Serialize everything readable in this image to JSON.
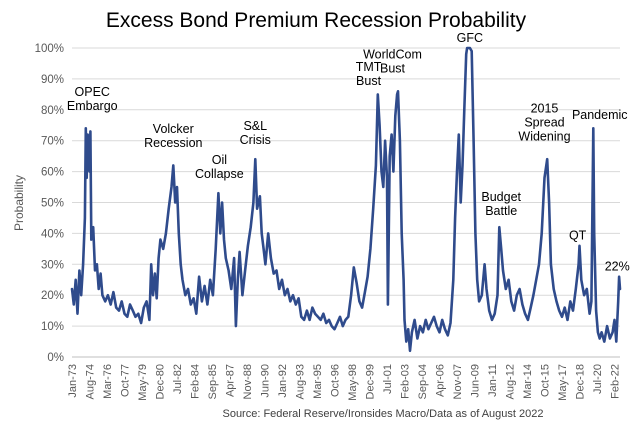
{
  "chart_data": {
    "type": "line",
    "title": "Excess Bond Premium Recession Probability",
    "xlabel": "",
    "ylabel": "Probability",
    "source": "Source: Federal Reserve/Ironsides Macro/Data as of August 2022",
    "ylim": [
      0,
      100
    ],
    "yticks": [
      "0%",
      "10%",
      "20%",
      "30%",
      "40%",
      "50%",
      "60%",
      "70%",
      "80%",
      "90%",
      "100%"
    ],
    "xlim": [
      "1973-01",
      "2022-08"
    ],
    "xticks": [
      {
        "label": "Jan-73",
        "date": "1973-01"
      },
      {
        "label": "Aug-74",
        "date": "1974-08"
      },
      {
        "label": "Mar-76",
        "date": "1976-03"
      },
      {
        "label": "Oct-77",
        "date": "1977-10"
      },
      {
        "label": "May-79",
        "date": "1979-05"
      },
      {
        "label": "Dec-80",
        "date": "1980-12"
      },
      {
        "label": "Jul-82",
        "date": "1982-07"
      },
      {
        "label": "Feb-84",
        "date": "1984-02"
      },
      {
        "label": "Sep-85",
        "date": "1985-09"
      },
      {
        "label": "Apr-87",
        "date": "1987-04"
      },
      {
        "label": "Nov-88",
        "date": "1988-11"
      },
      {
        "label": "Jun-90",
        "date": "1990-06"
      },
      {
        "label": "Jan-92",
        "date": "1992-01"
      },
      {
        "label": "Aug-93",
        "date": "1993-08"
      },
      {
        "label": "Mar-95",
        "date": "1995-03"
      },
      {
        "label": "Oct-96",
        "date": "1996-10"
      },
      {
        "label": "May-98",
        "date": "1998-05"
      },
      {
        "label": "Dec-99",
        "date": "1999-12"
      },
      {
        "label": "Jul-01",
        "date": "2001-07"
      },
      {
        "label": "Feb-03",
        "date": "2003-02"
      },
      {
        "label": "Sep-04",
        "date": "2004-09"
      },
      {
        "label": "Apr-06",
        "date": "2006-04"
      },
      {
        "label": "Nov-07",
        "date": "2007-11"
      },
      {
        "label": "Jun-09",
        "date": "2009-06"
      },
      {
        "label": "Jan-11",
        "date": "2011-01"
      },
      {
        "label": "Aug-12",
        "date": "2012-08"
      },
      {
        "label": "Mar-14",
        "date": "2014-03"
      },
      {
        "label": "Oct-15",
        "date": "2015-10"
      },
      {
        "label": "May-17",
        "date": "2017-05"
      },
      {
        "label": "Dec-18",
        "date": "2018-12"
      },
      {
        "label": "Jul-20",
        "date": "2020-07"
      },
      {
        "label": "Feb-22",
        "date": "2022-02"
      }
    ],
    "grid": true,
    "line_color": "#2f4b8c",
    "series": [
      {
        "name": "",
        "points": [
          [
            "1973-01",
            22
          ],
          [
            "1973-03",
            17
          ],
          [
            "1973-05",
            25
          ],
          [
            "1973-07",
            14
          ],
          [
            "1973-09",
            28
          ],
          [
            "1973-11",
            20
          ],
          [
            "1974-01",
            30
          ],
          [
            "1974-03",
            45
          ],
          [
            "1974-04",
            74
          ],
          [
            "1974-05",
            58
          ],
          [
            "1974-06",
            72
          ],
          [
            "1974-08",
            60
          ],
          [
            "1974-09",
            73
          ],
          [
            "1974-10",
            38
          ],
          [
            "1974-12",
            42
          ],
          [
            "1975-02",
            28
          ],
          [
            "1975-04",
            30
          ],
          [
            "1975-06",
            22
          ],
          [
            "1975-08",
            27
          ],
          [
            "1975-10",
            20
          ],
          [
            "1976-01",
            18
          ],
          [
            "1976-04",
            20
          ],
          [
            "1976-07",
            17
          ],
          [
            "1976-10",
            21
          ],
          [
            "1977-01",
            16
          ],
          [
            "1977-04",
            15
          ],
          [
            "1977-07",
            18
          ],
          [
            "1977-10",
            14
          ],
          [
            "1978-01",
            13
          ],
          [
            "1978-04",
            17
          ],
          [
            "1978-07",
            15
          ],
          [
            "1978-10",
            13
          ],
          [
            "1979-01",
            14
          ],
          [
            "1979-04",
            11
          ],
          [
            "1979-07",
            16
          ],
          [
            "1979-10",
            18
          ],
          [
            "1980-01",
            12
          ],
          [
            "1980-03",
            30
          ],
          [
            "1980-05",
            20
          ],
          [
            "1980-07",
            27
          ],
          [
            "1980-09",
            19
          ],
          [
            "1980-11",
            32
          ],
          [
            "1981-01",
            38
          ],
          [
            "1981-04",
            35
          ],
          [
            "1981-07",
            40
          ],
          [
            "1981-10",
            48
          ],
          [
            "1982-01",
            55
          ],
          [
            "1982-03",
            62
          ],
          [
            "1982-05",
            50
          ],
          [
            "1982-07",
            55
          ],
          [
            "1982-09",
            40
          ],
          [
            "1982-11",
            30
          ],
          [
            "1983-01",
            25
          ],
          [
            "1983-04",
            20
          ],
          [
            "1983-07",
            22
          ],
          [
            "1983-10",
            17
          ],
          [
            "1984-01",
            19
          ],
          [
            "1984-04",
            14
          ],
          [
            "1984-07",
            26
          ],
          [
            "1984-10",
            18
          ],
          [
            "1985-01",
            23
          ],
          [
            "1985-04",
            17
          ],
          [
            "1985-07",
            25
          ],
          [
            "1985-10",
            20
          ],
          [
            "1986-01",
            35
          ],
          [
            "1986-04",
            53
          ],
          [
            "1986-06",
            40
          ],
          [
            "1986-08",
            50
          ],
          [
            "1986-10",
            38
          ],
          [
            "1986-12",
            32
          ],
          [
            "1987-03",
            28
          ],
          [
            "1987-06",
            22
          ],
          [
            "1987-09",
            32
          ],
          [
            "1987-11",
            10
          ],
          [
            "1988-01",
            25
          ],
          [
            "1988-03",
            34
          ],
          [
            "1988-06",
            20
          ],
          [
            "1988-09",
            28
          ],
          [
            "1988-12",
            36
          ],
          [
            "1989-03",
            42
          ],
          [
            "1989-06",
            50
          ],
          [
            "1989-08",
            64
          ],
          [
            "1989-10",
            48
          ],
          [
            "1990-01",
            52
          ],
          [
            "1990-03",
            40
          ],
          [
            "1990-05",
            35
          ],
          [
            "1990-07",
            30
          ],
          [
            "1990-10",
            40
          ],
          [
            "1991-01",
            32
          ],
          [
            "1991-04",
            27
          ],
          [
            "1991-07",
            28
          ],
          [
            "1991-10",
            22
          ],
          [
            "1992-01",
            25
          ],
          [
            "1992-04",
            20
          ],
          [
            "1992-07",
            22
          ],
          [
            "1992-10",
            18
          ],
          [
            "1993-01",
            20
          ],
          [
            "1993-04",
            17
          ],
          [
            "1993-07",
            19
          ],
          [
            "1993-10",
            13
          ],
          [
            "1994-01",
            12
          ],
          [
            "1994-04",
            15
          ],
          [
            "1994-07",
            12
          ],
          [
            "1994-10",
            16
          ],
          [
            "1995-01",
            14
          ],
          [
            "1995-04",
            13
          ],
          [
            "1995-07",
            12
          ],
          [
            "1995-10",
            14
          ],
          [
            "1996-01",
            11
          ],
          [
            "1996-04",
            12
          ],
          [
            "1996-07",
            10
          ],
          [
            "1996-10",
            9
          ],
          [
            "1997-01",
            11
          ],
          [
            "1997-04",
            13
          ],
          [
            "1997-07",
            10
          ],
          [
            "1997-10",
            12
          ],
          [
            "1998-01",
            13
          ],
          [
            "1998-04",
            20
          ],
          [
            "1998-07",
            29
          ],
          [
            "1998-10",
            24
          ],
          [
            "1999-01",
            18
          ],
          [
            "1999-04",
            16
          ],
          [
            "1999-07",
            21
          ],
          [
            "1999-10",
            26
          ],
          [
            "2000-01",
            35
          ],
          [
            "2000-04",
            48
          ],
          [
            "2000-07",
            62
          ],
          [
            "2000-09",
            85
          ],
          [
            "2000-11",
            75
          ],
          [
            "2001-01",
            60
          ],
          [
            "2001-03",
            55
          ],
          [
            "2001-05",
            70
          ],
          [
            "2001-07",
            58
          ],
          [
            "2001-08",
            17
          ],
          [
            "2001-10",
            65
          ],
          [
            "2001-12",
            72
          ],
          [
            "2002-02",
            60
          ],
          [
            "2002-04",
            78
          ],
          [
            "2002-06",
            85
          ],
          [
            "2002-07",
            86
          ],
          [
            "2002-09",
            70
          ],
          [
            "2002-11",
            40
          ],
          [
            "2003-01",
            25
          ],
          [
            "2003-02",
            12
          ],
          [
            "2003-04",
            5
          ],
          [
            "2003-06",
            9
          ],
          [
            "2003-08",
            2
          ],
          [
            "2003-10",
            8
          ],
          [
            "2004-01",
            12
          ],
          [
            "2004-04",
            6
          ],
          [
            "2004-07",
            10
          ],
          [
            "2004-10",
            8
          ],
          [
            "2005-01",
            12
          ],
          [
            "2005-04",
            9
          ],
          [
            "2005-07",
            11
          ],
          [
            "2005-10",
            13
          ],
          [
            "2006-01",
            10
          ],
          [
            "2006-04",
            8
          ],
          [
            "2006-07",
            12
          ],
          [
            "2006-10",
            9
          ],
          [
            "2007-01",
            7
          ],
          [
            "2007-04",
            11
          ],
          [
            "2007-07",
            25
          ],
          [
            "2007-09",
            45
          ],
          [
            "2007-11",
            60
          ],
          [
            "2008-01",
            72
          ],
          [
            "2008-03",
            50
          ],
          [
            "2008-05",
            62
          ],
          [
            "2008-07",
            80
          ],
          [
            "2008-09",
            98
          ],
          [
            "2008-10",
            100
          ],
          [
            "2009-01",
            100
          ],
          [
            "2009-03",
            99
          ],
          [
            "2009-05",
            70
          ],
          [
            "2009-07",
            40
          ],
          [
            "2009-09",
            25
          ],
          [
            "2009-11",
            18
          ],
          [
            "2010-02",
            20
          ],
          [
            "2010-05",
            30
          ],
          [
            "2010-07",
            22
          ],
          [
            "2010-10",
            15
          ],
          [
            "2011-01",
            12
          ],
          [
            "2011-04",
            14
          ],
          [
            "2011-07",
            20
          ],
          [
            "2011-09",
            42
          ],
          [
            "2011-11",
            35
          ],
          [
            "2012-01",
            28
          ],
          [
            "2012-04",
            22
          ],
          [
            "2012-07",
            25
          ],
          [
            "2012-10",
            18
          ],
          [
            "2013-01",
            15
          ],
          [
            "2013-04",
            20
          ],
          [
            "2013-07",
            22
          ],
          [
            "2013-10",
            17
          ],
          [
            "2014-01",
            14
          ],
          [
            "2014-04",
            12
          ],
          [
            "2014-07",
            16
          ],
          [
            "2014-10",
            20
          ],
          [
            "2015-01",
            25
          ],
          [
            "2015-04",
            30
          ],
          [
            "2015-07",
            40
          ],
          [
            "2015-10",
            58
          ],
          [
            "2016-01",
            64
          ],
          [
            "2016-03",
            50
          ],
          [
            "2016-05",
            30
          ],
          [
            "2016-08",
            22
          ],
          [
            "2016-11",
            18
          ],
          [
            "2017-02",
            15
          ],
          [
            "2017-05",
            13
          ],
          [
            "2017-08",
            16
          ],
          [
            "2017-11",
            12
          ],
          [
            "2018-02",
            18
          ],
          [
            "2018-05",
            15
          ],
          [
            "2018-08",
            22
          ],
          [
            "2018-11",
            30
          ],
          [
            "2018-12",
            36
          ],
          [
            "2019-02",
            25
          ],
          [
            "2019-05",
            20
          ],
          [
            "2019-08",
            22
          ],
          [
            "2019-11",
            14
          ],
          [
            "2020-01",
            18
          ],
          [
            "2020-03",
            74
          ],
          [
            "2020-04",
            40
          ],
          [
            "2020-06",
            15
          ],
          [
            "2020-08",
            8
          ],
          [
            "2020-10",
            6
          ],
          [
            "2020-12",
            8
          ],
          [
            "2021-03",
            5
          ],
          [
            "2021-06",
            10
          ],
          [
            "2021-09",
            6
          ],
          [
            "2021-12",
            8
          ],
          [
            "2022-02",
            12
          ],
          [
            "2022-04",
            5
          ],
          [
            "2022-06",
            18
          ],
          [
            "2022-07",
            26
          ],
          [
            "2022-08",
            22
          ]
        ]
      }
    ],
    "annotations": [
      {
        "lines": [
          "OPEC",
          "Embargo"
        ],
        "date": "1974-11",
        "value": 80
      },
      {
        "lines": [
          "Volcker",
          "Recession"
        ],
        "date": "1982-03",
        "value": 68
      },
      {
        "lines": [
          "Oil",
          "Collapse"
        ],
        "date": "1986-05",
        "value": 58
      },
      {
        "lines": [
          "S&L",
          "Crisis"
        ],
        "date": "1989-08",
        "value": 69
      },
      {
        "lines": [
          "TMT",
          "Bust"
        ],
        "date": "1999-11",
        "value": 88
      },
      {
        "lines": [
          "WorldCom",
          "Bust"
        ],
        "date": "2002-01",
        "value": 92
      },
      {
        "lines": [
          "GFC"
        ],
        "date": "2009-00",
        "value": 102
      },
      {
        "lines": [
          "Budget",
          "Battle"
        ],
        "date": "2011-11",
        "value": 46
      },
      {
        "lines": [
          "2015",
          "Spread",
          "Widening"
        ],
        "date": "2015-10",
        "value": 70
      },
      {
        "lines": [
          "QT"
        ],
        "date": "2018-10",
        "value": 38
      },
      {
        "lines": [
          "Pandemic"
        ],
        "date": "2020-10",
        "value": 77
      },
      {
        "lines": [
          "22%"
        ],
        "date": "2022-05",
        "value": 28
      }
    ]
  }
}
